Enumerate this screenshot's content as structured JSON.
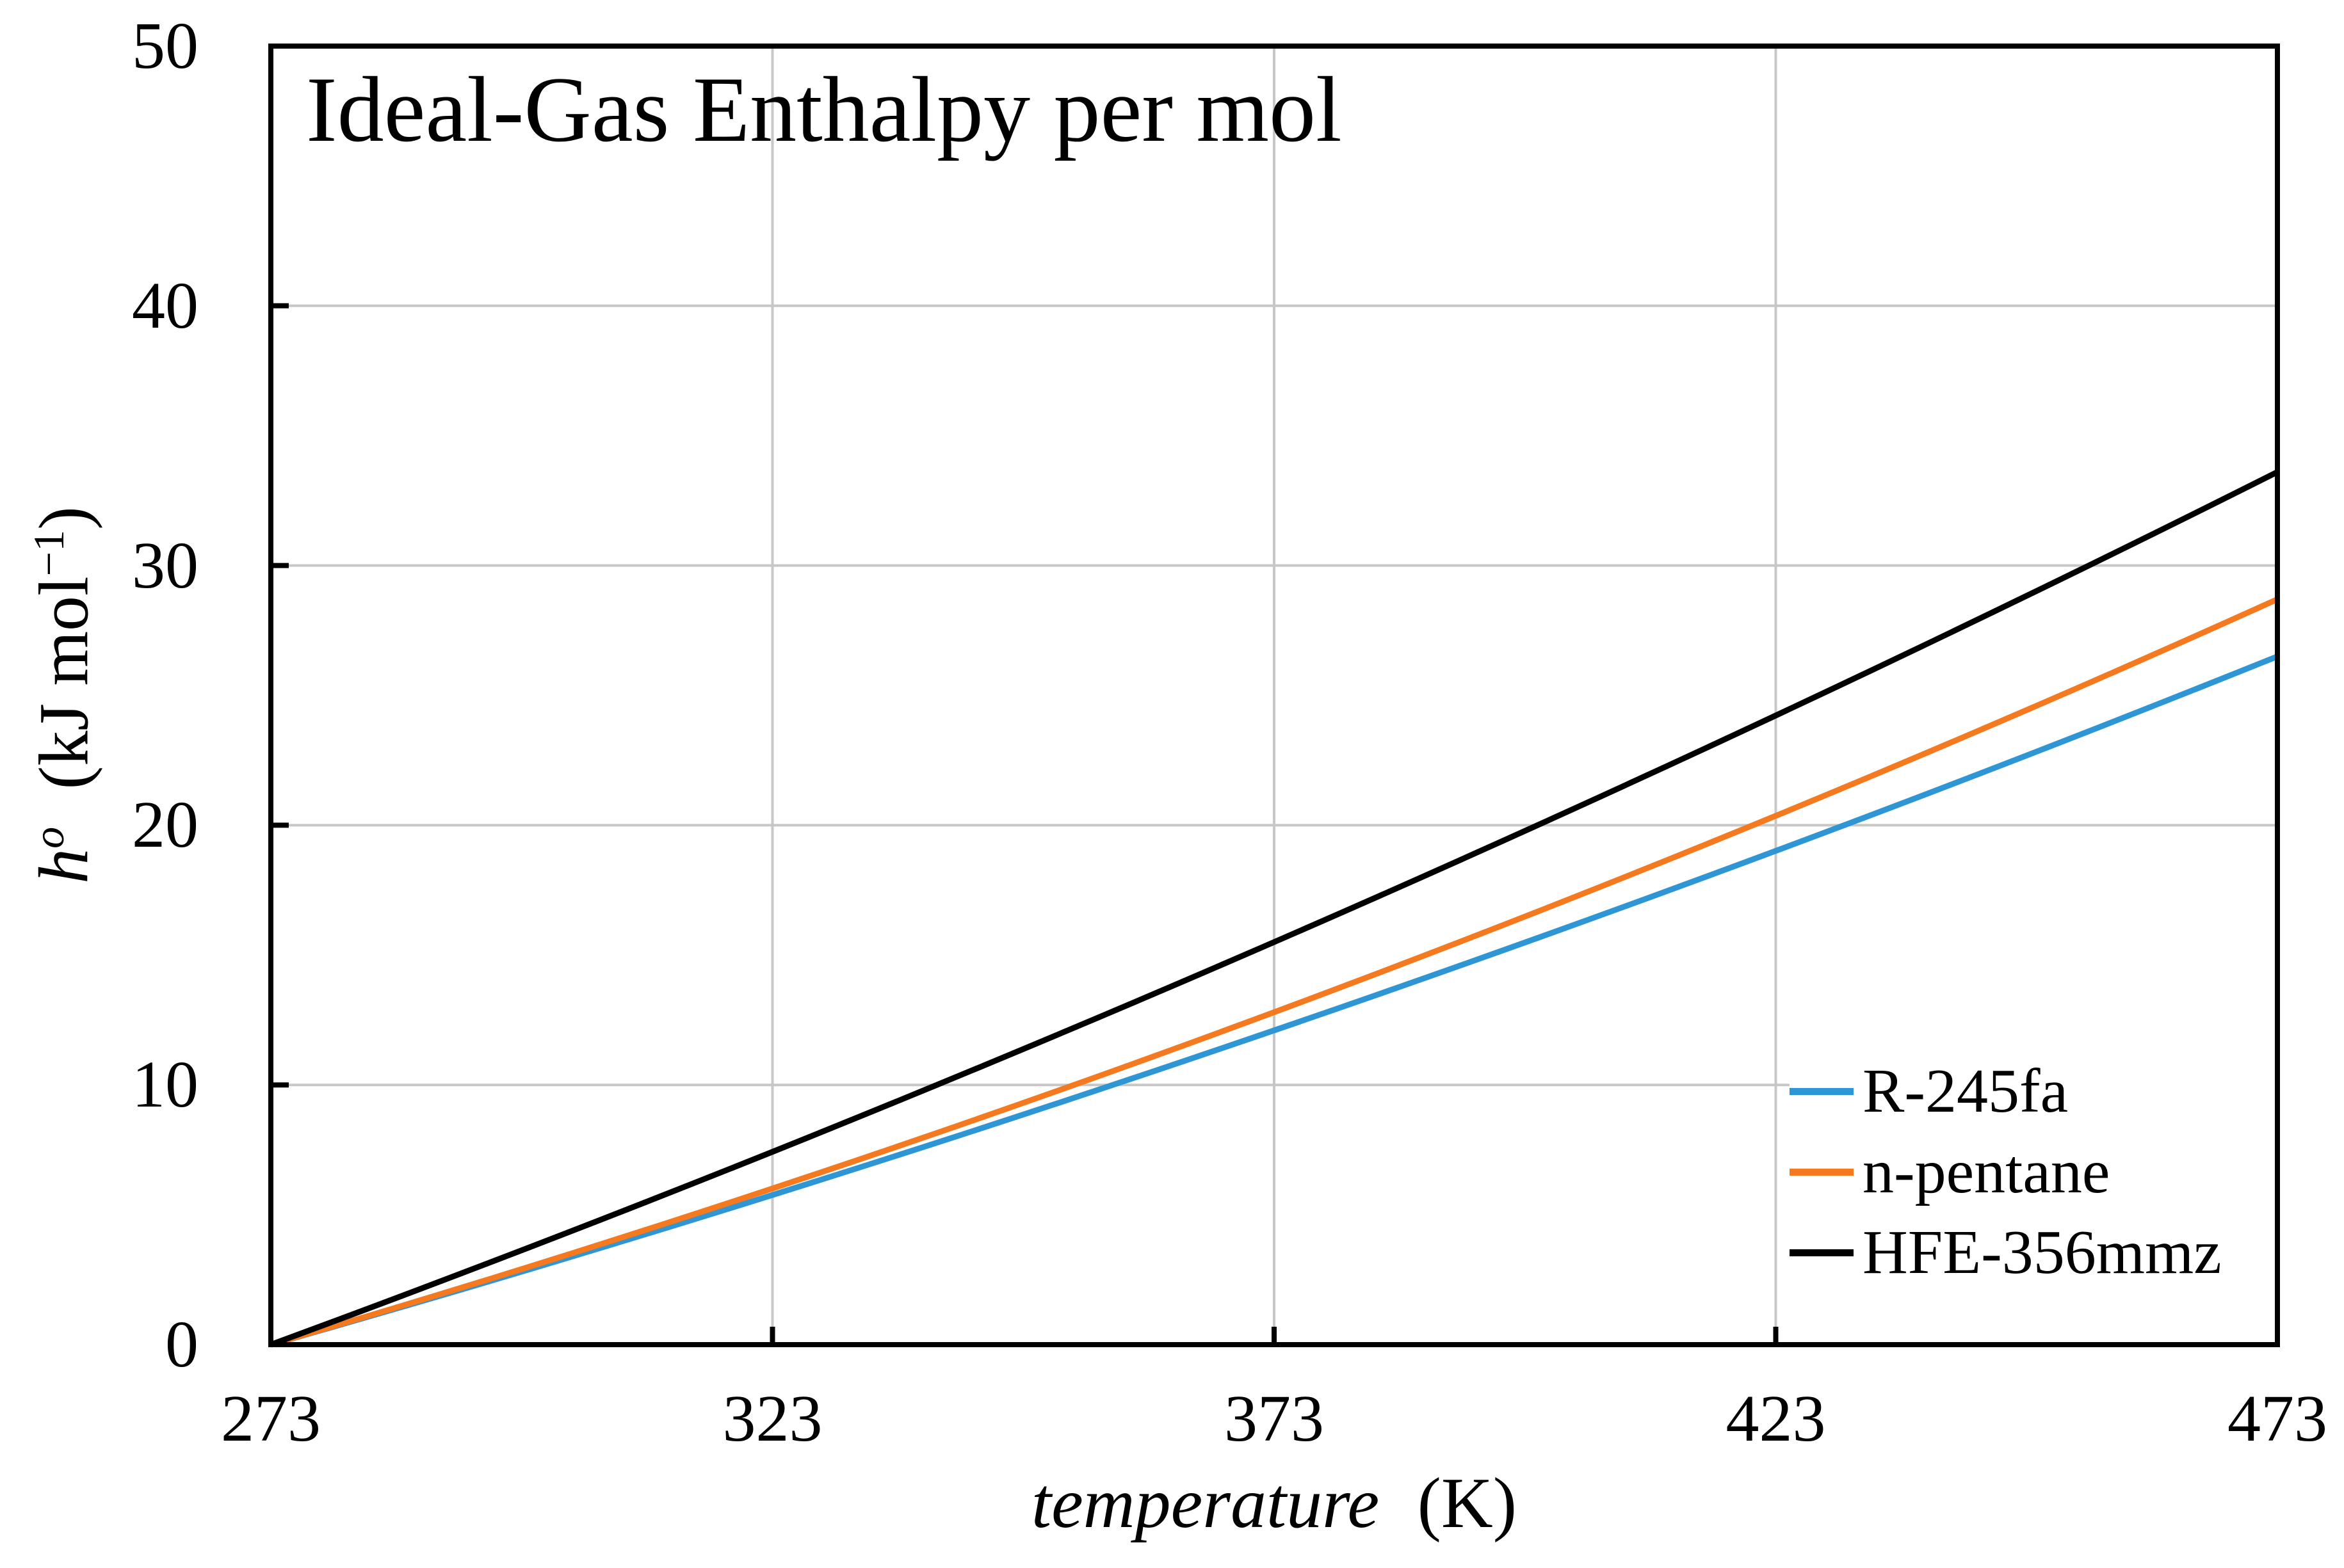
{
  "page": {
    "background": "#ffffff"
  },
  "colors": {
    "axis": "#000000",
    "gridline": "#c7c7c7",
    "text": "#000000",
    "legend_background": "#ffffff"
  },
  "chart_data": {
    "type": "line",
    "title": "Ideal-Gas Enthalpy per mol",
    "xlabel": "temperature (K)",
    "xlabel_italic": "temperature",
    "xlabel_unit": "(K)",
    "ylabel": "h^o (kJ mol^-1)",
    "ylabel_parts": {
      "symbol": "h",
      "symbol_sup": "o",
      "unit_pre": "(kJ mol",
      "unit_sup": "−1",
      "unit_post": ")"
    },
    "x": {
      "ticks": [
        273,
        323,
        373,
        423,
        473
      ],
      "range": [
        273,
        473
      ]
    },
    "y": {
      "ticks": [
        0,
        10,
        20,
        30,
        40,
        50
      ],
      "range": [
        0,
        50
      ]
    },
    "grid": true,
    "legend_position": "lower right",
    "series": [
      {
        "name": "R-245fa",
        "color": "#2E96D5",
        "x": [
          273,
          323,
          373,
          423,
          473
        ],
        "values": [
          0,
          5.5,
          12.1,
          19.2,
          26.5
        ]
      },
      {
        "name": "n-pentane",
        "color": "#F5791F",
        "x": [
          273,
          323,
          373,
          423,
          473
        ],
        "values": [
          0,
          5.7,
          12.8,
          20.4,
          28.7
        ]
      },
      {
        "name": "HFE-356mmz",
        "color": "#000000",
        "x": [
          273,
          323,
          373,
          423,
          473
        ],
        "values": [
          0,
          7.4,
          15.5,
          24.2,
          33.6
        ]
      }
    ]
  }
}
